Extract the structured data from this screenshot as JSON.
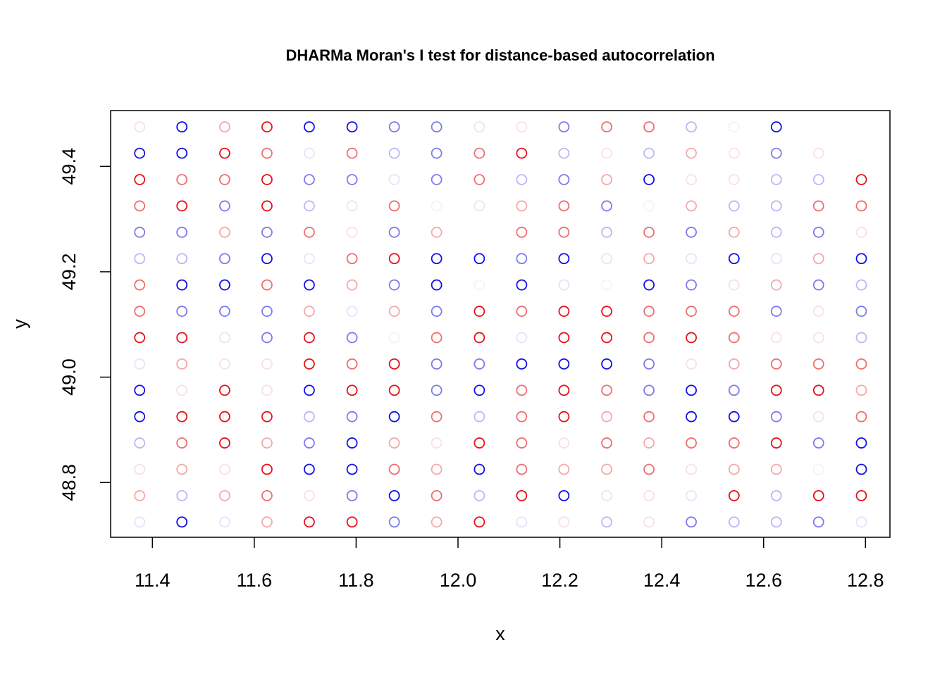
{
  "chart_data": {
    "type": "scatter",
    "title": "DHARMa Moran's I test for distance-based autocorrelation",
    "x_label": "x",
    "y_label": "y",
    "xlim": [
      11.318,
      12.848
    ],
    "ylim": [
      48.696,
      49.506
    ],
    "xticks": [
      11.4,
      11.6,
      11.8,
      {
        "value": 12,
        "label": "12.0"
      },
      12.2,
      12.4,
      12.6,
      12.8
    ],
    "yticks": [
      48.8,
      {
        "value": 49,
        "label": "49.0"
      },
      49.2,
      49.4
    ],
    "grid": false,
    "x": [
      11.375,
      11.458,
      11.542,
      11.625,
      11.708,
      11.792,
      11.875,
      11.958,
      12.042,
      12.125,
      12.208,
      12.292,
      12.375,
      12.458,
      12.542,
      12.625,
      11.375,
      11.458,
      11.542,
      11.625,
      11.708,
      11.792,
      11.875,
      11.958,
      12.042,
      12.125,
      12.208,
      12.292,
      12.375,
      12.458,
      12.542,
      12.625,
      12.708,
      11.375,
      11.458,
      11.542,
      11.625,
      11.708,
      11.792,
      11.875,
      11.958,
      12.042,
      12.125,
      12.208,
      12.292,
      12.375,
      12.458,
      12.542,
      12.625,
      12.708,
      12.792,
      11.375,
      11.458,
      11.542,
      11.625,
      11.708,
      11.792,
      11.875,
      11.958,
      12.042,
      12.125,
      12.208,
      12.292,
      12.375,
      12.458,
      12.542,
      12.625,
      12.708,
      12.792,
      11.375,
      11.458,
      11.542,
      11.625,
      11.708,
      11.792,
      11.875,
      11.958,
      12.125,
      12.208,
      12.292,
      12.375,
      12.458,
      12.542,
      12.625,
      12.708,
      12.792,
      11.375,
      11.458,
      11.542,
      11.625,
      11.708,
      11.792,
      11.875,
      11.958,
      12.042,
      12.125,
      12.208,
      12.292,
      12.375,
      12.458,
      12.542,
      12.625,
      12.708,
      12.792,
      11.375,
      11.458,
      11.542,
      11.625,
      11.708,
      11.792,
      11.875,
      11.958,
      12.042,
      12.125,
      12.208,
      12.292,
      12.375,
      12.458,
      12.542,
      12.625,
      12.708,
      12.792,
      11.375,
      11.458,
      11.542,
      11.625,
      11.708,
      11.792,
      11.875,
      11.958,
      12.042,
      12.125,
      12.208,
      12.292,
      12.375,
      12.458,
      12.542,
      12.625,
      12.708,
      12.792,
      11.375,
      11.458,
      11.542,
      11.625,
      11.708,
      11.792,
      11.875,
      11.958,
      12.042,
      12.125,
      12.208,
      12.292,
      12.375,
      12.458,
      12.542,
      12.625,
      12.708,
      12.792,
      11.375,
      11.458,
      11.542,
      11.625,
      11.708,
      11.792,
      11.875,
      11.958,
      12.042,
      12.125,
      12.208,
      12.292,
      12.375,
      12.458,
      12.542,
      12.625,
      12.708,
      12.792,
      11.375,
      11.458,
      11.542,
      11.625,
      11.708,
      11.792,
      11.875,
      11.958,
      12.042,
      12.125,
      12.208,
      12.292,
      12.375,
      12.458,
      12.542,
      12.625,
      12.708,
      12.792,
      11.375,
      11.458,
      11.542,
      11.625,
      11.708,
      11.792,
      11.875,
      11.958,
      12.042,
      12.125,
      12.208,
      12.292,
      12.375,
      12.458,
      12.542,
      12.625,
      12.708,
      12.792,
      11.375,
      11.458,
      11.542,
      11.625,
      11.708,
      11.792,
      11.875,
      11.958,
      12.042,
      12.125,
      12.208,
      12.292,
      12.375,
      12.458,
      12.542,
      12.625,
      12.708,
      12.792,
      11.375,
      11.458,
      11.542,
      11.625,
      11.708,
      11.792,
      11.875,
      11.958,
      12.042,
      12.125,
      12.208,
      12.292,
      12.375,
      12.458,
      12.542,
      12.625,
      12.708,
      12.792,
      11.375,
      11.458,
      11.542,
      11.625,
      11.708,
      11.792,
      11.875,
      11.958,
      12.042,
      12.125,
      12.208,
      12.292,
      12.375,
      12.458,
      12.542,
      12.625,
      12.708,
      12.792,
      11.375,
      11.458,
      11.542,
      11.625,
      11.708,
      11.792,
      11.875,
      11.958,
      12.042,
      12.125,
      12.208,
      12.292,
      12.375,
      12.458,
      12.542,
      12.625,
      12.708,
      12.792
    ],
    "y": [
      49.475,
      49.475,
      49.475,
      49.475,
      49.475,
      49.475,
      49.475,
      49.475,
      49.475,
      49.475,
      49.475,
      49.475,
      49.475,
      49.475,
      49.475,
      49.475,
      49.425,
      49.425,
      49.425,
      49.425,
      49.425,
      49.425,
      49.425,
      49.425,
      49.425,
      49.425,
      49.425,
      49.425,
      49.425,
      49.425,
      49.425,
      49.425,
      49.425,
      49.375,
      49.375,
      49.375,
      49.375,
      49.375,
      49.375,
      49.375,
      49.375,
      49.375,
      49.375,
      49.375,
      49.375,
      49.375,
      49.375,
      49.375,
      49.375,
      49.375,
      49.375,
      49.325,
      49.325,
      49.325,
      49.325,
      49.325,
      49.325,
      49.325,
      49.325,
      49.325,
      49.325,
      49.325,
      49.325,
      49.325,
      49.325,
      49.325,
      49.325,
      49.325,
      49.325,
      49.275,
      49.275,
      49.275,
      49.275,
      49.275,
      49.275,
      49.275,
      49.275,
      49.275,
      49.275,
      49.275,
      49.275,
      49.275,
      49.275,
      49.275,
      49.275,
      49.275,
      49.225,
      49.225,
      49.225,
      49.225,
      49.225,
      49.225,
      49.225,
      49.225,
      49.225,
      49.225,
      49.225,
      49.225,
      49.225,
      49.225,
      49.225,
      49.225,
      49.225,
      49.225,
      49.175,
      49.175,
      49.175,
      49.175,
      49.175,
      49.175,
      49.175,
      49.175,
      49.175,
      49.175,
      49.175,
      49.175,
      49.175,
      49.175,
      49.175,
      49.175,
      49.175,
      49.175,
      49.125,
      49.125,
      49.125,
      49.125,
      49.125,
      49.125,
      49.125,
      49.125,
      49.125,
      49.125,
      49.125,
      49.125,
      49.125,
      49.125,
      49.125,
      49.125,
      49.125,
      49.125,
      49.075,
      49.075,
      49.075,
      49.075,
      49.075,
      49.075,
      49.075,
      49.075,
      49.075,
      49.075,
      49.075,
      49.075,
      49.075,
      49.075,
      49.075,
      49.075,
      49.075,
      49.075,
      49.025,
      49.025,
      49.025,
      49.025,
      49.025,
      49.025,
      49.025,
      49.025,
      49.025,
      49.025,
      49.025,
      49.025,
      49.025,
      49.025,
      49.025,
      49.025,
      49.025,
      49.025,
      48.975,
      48.975,
      48.975,
      48.975,
      48.975,
      48.975,
      48.975,
      48.975,
      48.975,
      48.975,
      48.975,
      48.975,
      48.975,
      48.975,
      48.975,
      48.975,
      48.975,
      48.975,
      48.925,
      48.925,
      48.925,
      48.925,
      48.925,
      48.925,
      48.925,
      48.925,
      48.925,
      48.925,
      48.925,
      48.925,
      48.925,
      48.925,
      48.925,
      48.925,
      48.925,
      48.925,
      48.875,
      48.875,
      48.875,
      48.875,
      48.875,
      48.875,
      48.875,
      48.875,
      48.875,
      48.875,
      48.875,
      48.875,
      48.875,
      48.875,
      48.875,
      48.875,
      48.875,
      48.875,
      48.825,
      48.825,
      48.825,
      48.825,
      48.825,
      48.825,
      48.825,
      48.825,
      48.825,
      48.825,
      48.825,
      48.825,
      48.825,
      48.825,
      48.825,
      48.825,
      48.825,
      48.825,
      48.775,
      48.775,
      48.775,
      48.775,
      48.775,
      48.775,
      48.775,
      48.775,
      48.775,
      48.775,
      48.775,
      48.775,
      48.775,
      48.775,
      48.775,
      48.775,
      48.775,
      48.775,
      48.725,
      48.725,
      48.725,
      48.725,
      48.725,
      48.725,
      48.725,
      48.725,
      48.725,
      48.725,
      48.725,
      48.725,
      48.725,
      48.725,
      48.725,
      48.725,
      48.725,
      48.725
    ],
    "colors": [
      "#fbe0e0",
      "#1010e8",
      "#f5a8a8",
      "#e8101a",
      "#1010e8",
      "#1010e8",
      "#7b7bee",
      "#7b7bee",
      "#fbe0e0",
      "#fbe0e0",
      "#7b7bee",
      "#ee6e6e",
      "#ee6e6e",
      "#b8b8f6",
      "#fdf0f0",
      "#1010e8",
      "#1010e8",
      "#1010e8",
      "#e8101a",
      "#ee6e6e",
      "#e4e4fc",
      "#ee6e6e",
      "#b8b8f6",
      "#7b7bee",
      "#ee6e6e",
      "#e8101a",
      "#b8b8f6",
      "#fbe0e0",
      "#b8b8f6",
      "#f5a8a8",
      "#fbe0e0",
      "#7b7bee",
      "#fbe0e0",
      "#e8101a",
      "#ee6e6e",
      "#ee6e6e",
      "#e8101a",
      "#7b7bee",
      "#7b7bee",
      "#e4e4fc",
      "#7b7bee",
      "#ee6e6e",
      "#b8b8f6",
      "#7b7bee",
      "#f5a8a8",
      "#1010e8",
      "#fbe0e0",
      "#fbe0e0",
      "#b8b8f6",
      "#b8b8f6",
      "#e8101a",
      "#ee6e6e",
      "#e8101a",
      "#7b7bee",
      "#e8101a",
      "#b8b8f6",
      "#fbe0e0",
      "#ee6e6e",
      "#fdf0f0",
      "#fbe0e0",
      "#f5a8a8",
      "#ee6e6e",
      "#7b7bee",
      "#fdf0f0",
      "#f5a8a8",
      "#b8b8f6",
      "#b8b8f6",
      "#ee6e6e",
      "#ee6e6e",
      "#7b7bee",
      "#7b7bee",
      "#f5a8a8",
      "#7b7bee",
      "#ee6e6e",
      "#fbe0e0",
      "#7b7bee",
      "#f5a8a8",
      "#ee6e6e",
      "#ee6e6e",
      "#b8b8f6",
      "#ee6e6e",
      "#7b7bee",
      "#f5a8a8",
      "#b8b8f6",
      "#7b7bee",
      "#fbe0e0",
      "#b8b8f6",
      "#b8b8f6",
      "#7b7bee",
      "#1010e8",
      "#e4e4fc",
      "#ee6e6e",
      "#e8101a",
      "#1010e8",
      "#1010e8",
      "#7b7bee",
      "#1010e8",
      "#fbe0e0",
      "#f5a8a8",
      "#e4e4fc",
      "#1010e8",
      "#e4e4fc",
      "#f5a8a8",
      "#1010e8",
      "#ee6e6e",
      "#1010e8",
      "#1010e8",
      "#ee6e6e",
      "#1010e8",
      "#f5a8a8",
      "#7b7bee",
      "#1010e8",
      "#fdf0f0",
      "#1010e8",
      "#e4e4fc",
      "#fdf0f0",
      "#1010e8",
      "#7b7bee",
      "#fbe0e0",
      "#f5a8a8",
      "#7b7bee",
      "#b8b8f6",
      "#ee6e6e",
      "#7b7bee",
      "#7b7bee",
      "#7b7bee",
      "#f5a8a8",
      "#e4e4fc",
      "#f5a8a8",
      "#7b7bee",
      "#e8101a",
      "#ee6e6e",
      "#e8101a",
      "#e8101a",
      "#ee6e6e",
      "#ee6e6e",
      "#ee6e6e",
      "#7b7bee",
      "#fbe0e0",
      "#7b7bee",
      "#e8101a",
      "#e8101a",
      "#fbe0e0",
      "#7b7bee",
      "#e8101a",
      "#7b7bee",
      "#fdf0f0",
      "#ee6e6e",
      "#e8101a",
      "#e4e4fc",
      "#e8101a",
      "#e8101a",
      "#ee6e6e",
      "#e8101a",
      "#ee6e6e",
      "#fbe0e0",
      "#fbe0e0",
      "#b8b8f6",
      "#e4e4fc",
      "#f5a8a8",
      "#fbe0e0",
      "#fbe0e0",
      "#e8101a",
      "#ee6e6e",
      "#e8101a",
      "#7b7bee",
      "#7b7bee",
      "#1010e8",
      "#1010e8",
      "#1010e8",
      "#7b7bee",
      "#fbe0e0",
      "#f5a8a8",
      "#ee6e6e",
      "#ee6e6e",
      "#ee6e6e",
      "#1010e8",
      "#fbe0e0",
      "#e8101a",
      "#fbe0e0",
      "#1010e8",
      "#e8101a",
      "#e8101a",
      "#7b7bee",
      "#1010e8",
      "#ee6e6e",
      "#e8101a",
      "#ee6e6e",
      "#7b7bee",
      "#1010e8",
      "#7b7bee",
      "#e8101a",
      "#e8101a",
      "#f5a8a8",
      "#1010e8",
      "#e8101a",
      "#e8101a",
      "#e8101a",
      "#b8b8f6",
      "#7b7bee",
      "#1010e8",
      "#ee6e6e",
      "#b8b8f6",
      "#ee6e6e",
      "#e8101a",
      "#f5a8a8",
      "#ee6e6e",
      "#1010e8",
      "#1010e8",
      "#7b7bee",
      "#fbe0e0",
      "#ee6e6e",
      "#b8b8f6",
      "#ee6e6e",
      "#e8101a",
      "#f5a8a8",
      "#7b7bee",
      "#1010e8",
      "#f5a8a8",
      "#fbe0e0",
      "#e8101a",
      "#ee6e6e",
      "#fbe0e0",
      "#ee6e6e",
      "#f5a8a8",
      "#ee6e6e",
      "#ee6e6e",
      "#e8101a",
      "#7b7bee",
      "#1010e8",
      "#fbe0e0",
      "#f5a8a8",
      "#fbe0e0",
      "#e8101a",
      "#1010e8",
      "#1010e8",
      "#ee6e6e",
      "#f5a8a8",
      "#1010e8",
      "#ee6e6e",
      "#f5a8a8",
      "#f5a8a8",
      "#ee6e6e",
      "#fbe0e0",
      "#f5a8a8",
      "#f5a8a8",
      "#fdf0f0",
      "#1010e8",
      "#f5a8a8",
      "#b8b8f6",
      "#f5a8a8",
      "#ee6e6e",
      "#fbe0e0",
      "#7b7bee",
      "#1010e8",
      "#ee6e6e",
      "#b8b8f6",
      "#e8101a",
      "#1010e8",
      "#fbe0e0",
      "#fbe0e0",
      "#e4e4fc",
      "#e8101a",
      "#b8b8f6",
      "#e8101a",
      "#e8101a",
      "#e4e4fc",
      "#1010e8",
      "#e4e4fc",
      "#f5a8a8",
      "#e8101a",
      "#e8101a",
      "#7b7bee",
      "#f5a8a8",
      "#e8101a",
      "#e4e4fc",
      "#fbe0e0",
      "#b8b8f6",
      "#fbe0e0",
      "#7b7bee",
      "#b8b8f6",
      "#b8b8f6",
      "#7b7bee",
      "#e4e4fc"
    ]
  }
}
